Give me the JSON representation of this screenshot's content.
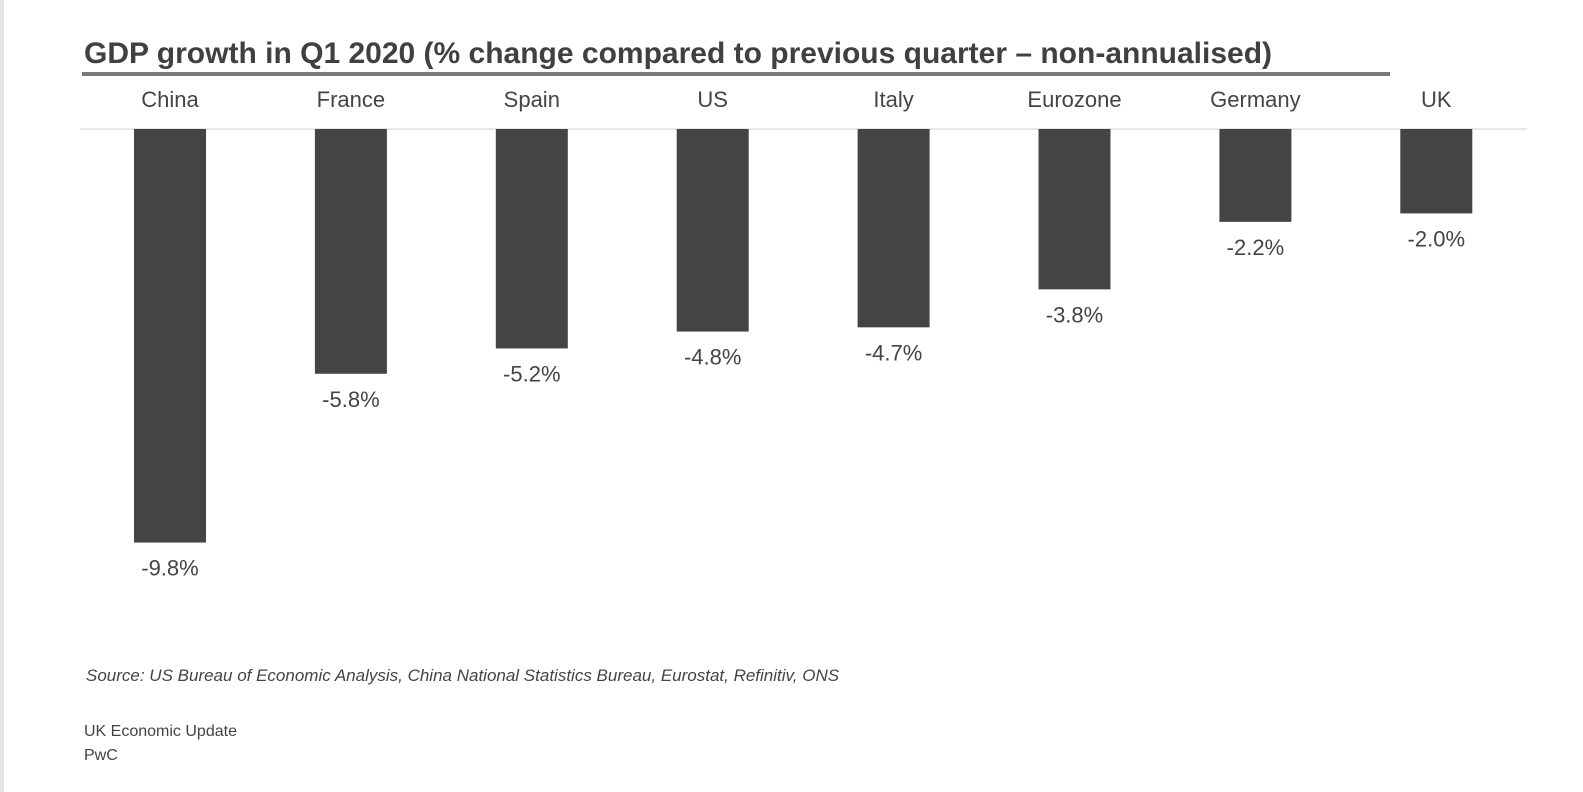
{
  "chart_data": {
    "type": "bar",
    "title": "GDP growth in Q1 2020 (% change compared to previous quarter – non-annualised)",
    "categories": [
      "China",
      "France",
      "Spain",
      "US",
      "Italy",
      "Eurozone",
      "Germany",
      "UK"
    ],
    "values": [
      -9.8,
      -5.8,
      -5.2,
      -4.8,
      -4.7,
      -3.8,
      -2.2,
      -2.0
    ],
    "value_labels": [
      "-9.8%",
      "-5.8%",
      "-5.2%",
      "-4.8%",
      "-4.7%",
      "-3.8%",
      "-2.2%",
      "-2.0%"
    ],
    "xlabel": "",
    "ylabel": "",
    "ylim": [
      -10,
      0
    ],
    "grid": false,
    "category_axis_position": "top",
    "colors": {
      "bar": "#444444",
      "text": "#444444",
      "title": "#404040",
      "axis_line": "#e8e8e8",
      "title_rule": "#7a7a7a"
    }
  },
  "source": "Source: US Bureau of Economic Analysis, China National Statistics Bureau, Eurostat, Refinitiv, ONS",
  "footer": {
    "line1": "UK Economic Update",
    "line2": "PwC"
  }
}
